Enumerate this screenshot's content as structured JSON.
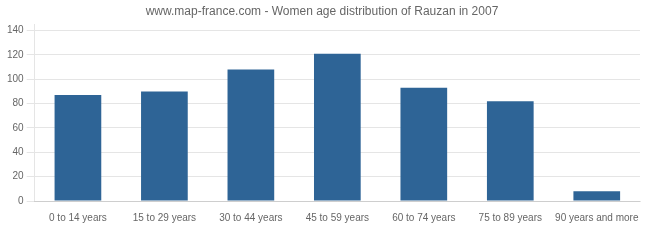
{
  "chart_data": {
    "type": "bar",
    "title": "www.map-france.com - Women age distribution of Rauzan in 2007",
    "categories": [
      "0 to 14 years",
      "15 to 29 years",
      "30 to 44 years",
      "45 to 59 years",
      "60 to 74 years",
      "75 to 89 years",
      "90 years and more"
    ],
    "values": [
      87,
      90,
      108,
      121,
      93,
      82,
      8
    ],
    "color": "#2e6496",
    "ylim": [
      0,
      145
    ],
    "yticks": [
      0,
      20,
      40,
      60,
      80,
      100,
      120,
      140
    ],
    "grid": true
  }
}
